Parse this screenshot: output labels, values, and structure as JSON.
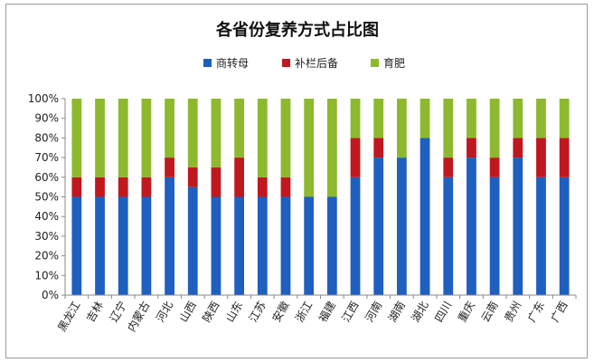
{
  "chart_data": {
    "type": "bar",
    "stacked": true,
    "title": "各省份复养方式占比图",
    "categories": [
      "黑龙江",
      "吉林",
      "辽宁",
      "内蒙古",
      "河北",
      "山西",
      "陕西",
      "山东",
      "江苏",
      "安徽",
      "浙江",
      "福建",
      "江西",
      "河南",
      "湖南",
      "湖北",
      "四川",
      "重庆",
      "云南",
      "贵州",
      "广东",
      "广西"
    ],
    "series": [
      {
        "name": "商转母",
        "color": "#1f5fbf",
        "values": [
          0.5,
          0.5,
          0.5,
          0.5,
          0.6,
          0.55,
          0.5,
          0.5,
          0.5,
          0.5,
          0.5,
          0.5,
          0.6,
          0.7,
          0.7,
          0.8,
          0.6,
          0.7,
          0.6,
          0.7,
          0.6,
          0.6
        ]
      },
      {
        "name": "补栏后备",
        "color": "#c0181f",
        "values": [
          0.1,
          0.1,
          0.1,
          0.1,
          0.1,
          0.1,
          0.15,
          0.2,
          0.1,
          0.1,
          0.0,
          0.0,
          0.2,
          0.1,
          0.0,
          0.0,
          0.1,
          0.1,
          0.1,
          0.1,
          0.2,
          0.2
        ]
      },
      {
        "name": "育肥",
        "color": "#8db92e",
        "values": [
          0.4,
          0.4,
          0.4,
          0.4,
          0.3,
          0.35,
          0.35,
          0.3,
          0.4,
          0.4,
          0.5,
          0.5,
          0.2,
          0.2,
          0.3,
          0.2,
          0.3,
          0.2,
          0.3,
          0.2,
          0.2,
          0.2
        ]
      }
    ],
    "yticks": [
      "0%",
      "10%",
      "20%",
      "30%",
      "40%",
      "50%",
      "60%",
      "70%",
      "80%",
      "90%",
      "100%"
    ],
    "ylim": [
      0,
      1
    ],
    "legend_position": "top",
    "grid": false
  }
}
